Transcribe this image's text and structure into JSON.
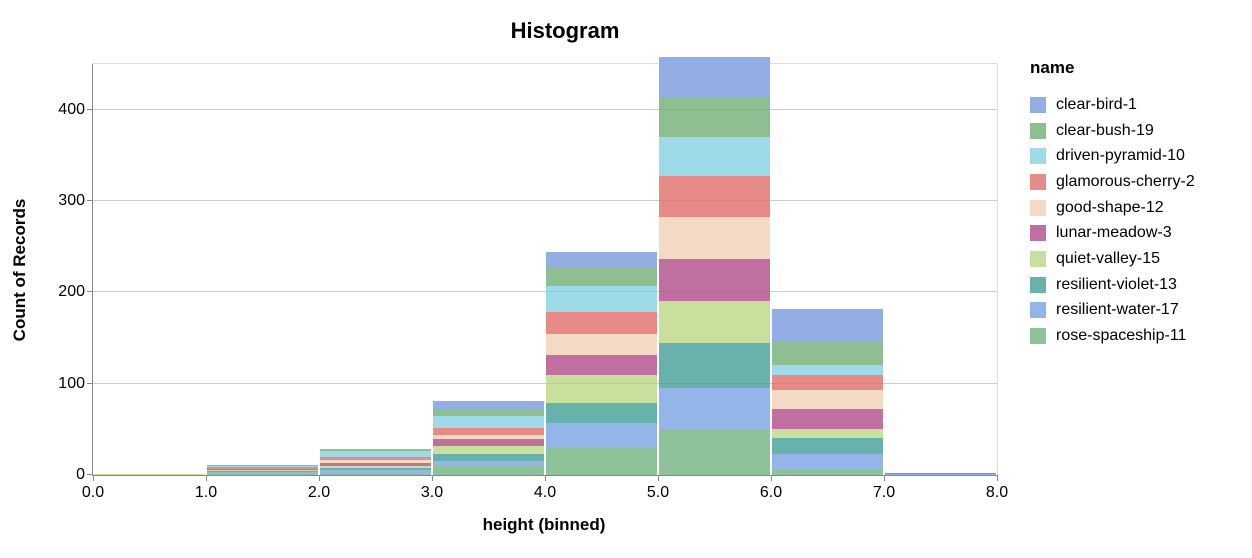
{
  "page": {
    "background": "#ffffff"
  },
  "styles": {
    "axis_color": "#888888",
    "grid_color": "#dddddd",
    "text_color": "#000000"
  },
  "chart_data": {
    "type": "bar",
    "variant": "stacked-histogram",
    "title": "Histogram",
    "xlabel": "height (binned)",
    "ylabel": "Count of Records",
    "legend_title": "name",
    "legend_position": "right",
    "grid": true,
    "x_bin_edges": [
      0,
      1,
      2,
      3,
      4,
      5,
      6,
      7,
      8
    ],
    "x_tick_labels": [
      "0.0",
      "1.0",
      "2.0",
      "3.0",
      "4.0",
      "5.0",
      "6.0",
      "7.0",
      "8.0"
    ],
    "y_ticks": [
      0,
      100,
      200,
      300,
      400
    ],
    "y_tick_labels": [
      "0",
      "100",
      "200",
      "300",
      "400"
    ],
    "y_domain": [
      0,
      450
    ],
    "stack_order": "first-series-on-top",
    "bin_totals": [
      1,
      11,
      28,
      81,
      244,
      458,
      182,
      2
    ],
    "series": [
      {
        "name": "clear-bird-1",
        "color": "#92AEE4",
        "values": [
          0,
          0,
          1,
          9,
          16,
          44,
          36,
          0
        ]
      },
      {
        "name": "clear-bush-19",
        "color": "#8DBF93",
        "values": [
          0,
          1,
          1,
          7,
          21,
          44,
          26,
          0
        ]
      },
      {
        "name": "driven-pyramid-10",
        "color": "#9EDAE8",
        "values": [
          0,
          1,
          6,
          13,
          28,
          43,
          10,
          0
        ]
      },
      {
        "name": "glamorous-cherry-2",
        "color": "#E78B88",
        "values": [
          0,
          2,
          4,
          8,
          25,
          45,
          17,
          0
        ]
      },
      {
        "name": "good-shape-12",
        "color": "#F4D9C4",
        "values": [
          0,
          0,
          3,
          5,
          23,
          46,
          21,
          0
        ]
      },
      {
        "name": "lunar-meadow-3",
        "color": "#BF6FA0",
        "values": [
          0,
          1,
          3,
          7,
          22,
          45,
          22,
          1
        ]
      },
      {
        "name": "quiet-valley-15",
        "color": "#C9DF9D",
        "values": [
          1,
          1,
          2,
          9,
          30,
          47,
          10,
          0
        ]
      },
      {
        "name": "resilient-violet-13",
        "color": "#68B2AB",
        "values": [
          0,
          2,
          3,
          8,
          22,
          49,
          17,
          0
        ]
      },
      {
        "name": "resilient-water-17",
        "color": "#93B5E9",
        "values": [
          0,
          2,
          3,
          5,
          27,
          46,
          16,
          1
        ]
      },
      {
        "name": "rose-spaceship-11",
        "color": "#8DC29B",
        "values": [
          0,
          1,
          2,
          10,
          30,
          49,
          7,
          0
        ]
      }
    ]
  }
}
